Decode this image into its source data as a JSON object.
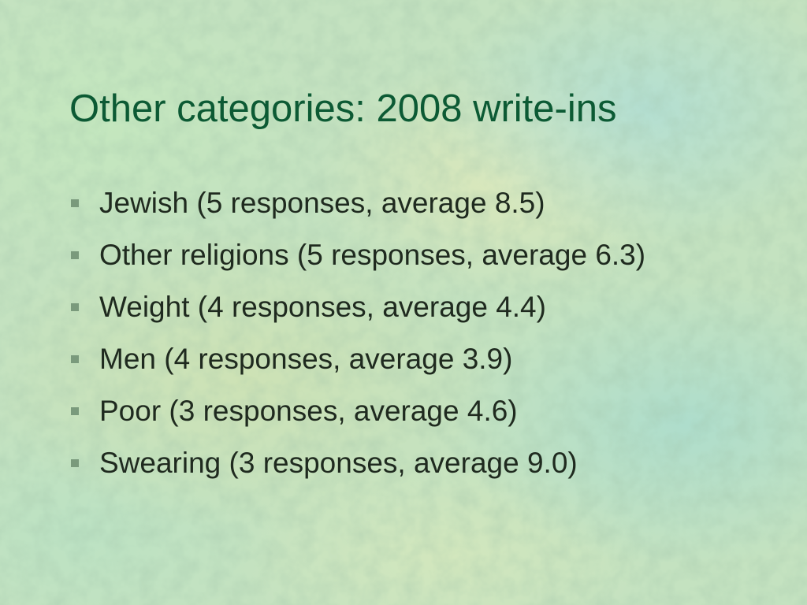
{
  "slide": {
    "title": "Other categories: 2008 write-ins",
    "bullets": [
      {
        "text": "Jewish (5 responses, average 8.5)"
      },
      {
        "text": "Other religions (5 responses, average 6.3)"
      },
      {
        "text": "Weight (4 responses, average 4.4)"
      },
      {
        "text": "Men (4 responses, average 3.9)"
      },
      {
        "text": "Poor (3 responses, average 4.6)"
      },
      {
        "text": "Swearing (3 responses, average 9.0)"
      }
    ],
    "colors": {
      "title": "#0c5a34",
      "body_text": "#1f2a1f",
      "bullet_marker": "#7a9a7c",
      "background": "#c4e2c0"
    },
    "icons": {
      "bullet": "square-bullet-icon"
    }
  }
}
